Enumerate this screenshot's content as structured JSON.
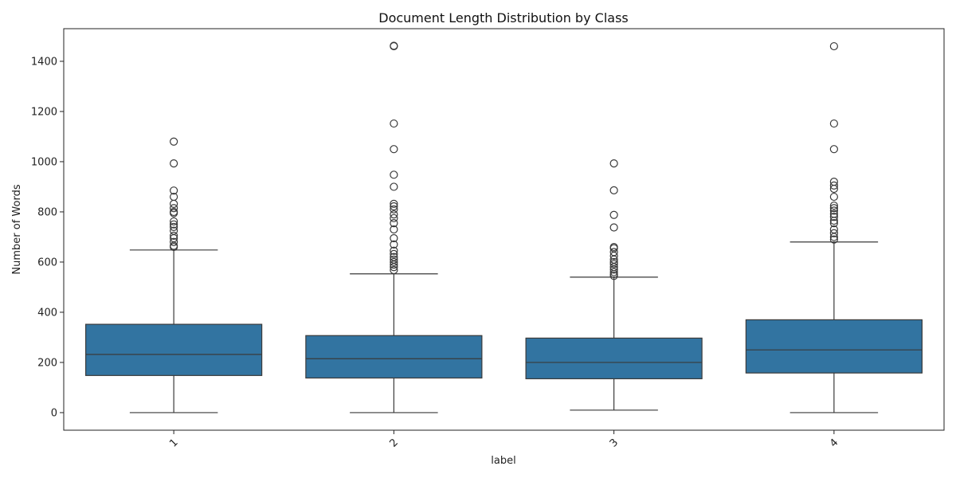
{
  "chart_data": {
    "type": "box",
    "title": "Document Length Distribution by Class",
    "xlabel": "label",
    "ylabel": "Number of Words",
    "ylim": [
      -70,
      1530
    ],
    "yticks": [
      0,
      200,
      400,
      600,
      800,
      1000,
      1200,
      1400
    ],
    "box_color": "#3274a1",
    "line_color": "#3a3a3a",
    "categories": [
      "1",
      "2",
      "3",
      "4"
    ],
    "boxes": [
      {
        "label": "1",
        "whisker_low": 0,
        "q1": 148,
        "median": 232,
        "q3": 352,
        "whisker_high": 648,
        "outliers": [
          660,
          665,
          680,
          695,
          705,
          725,
          740,
          750,
          762,
          795,
          800,
          815,
          832,
          860,
          885,
          993,
          1080
        ]
      },
      {
        "label": "2",
        "whisker_low": 0,
        "q1": 138,
        "median": 215,
        "q3": 307,
        "whisker_high": 553,
        "outliers": [
          568,
          580,
          590,
          600,
          610,
          620,
          632,
          645,
          670,
          695,
          730,
          755,
          775,
          790,
          810,
          822,
          832,
          900,
          948,
          1050,
          1152,
          1460,
          1462
        ]
      },
      {
        "label": "3",
        "whisker_low": 10,
        "q1": 135,
        "median": 200,
        "q3": 297,
        "whisker_high": 540,
        "outliers": [
          545,
          552,
          560,
          570,
          580,
          592,
          600,
          610,
          625,
          640,
          655,
          660,
          738,
          788,
          886,
          993
        ]
      },
      {
        "label": "4",
        "whisker_low": 0,
        "q1": 158,
        "median": 250,
        "q3": 370,
        "whisker_high": 680,
        "outliers": [
          690,
          700,
          715,
          730,
          755,
          765,
          780,
          792,
          805,
          815,
          825,
          860,
          892,
          905,
          920,
          1050,
          1152,
          1460
        ]
      }
    ]
  }
}
